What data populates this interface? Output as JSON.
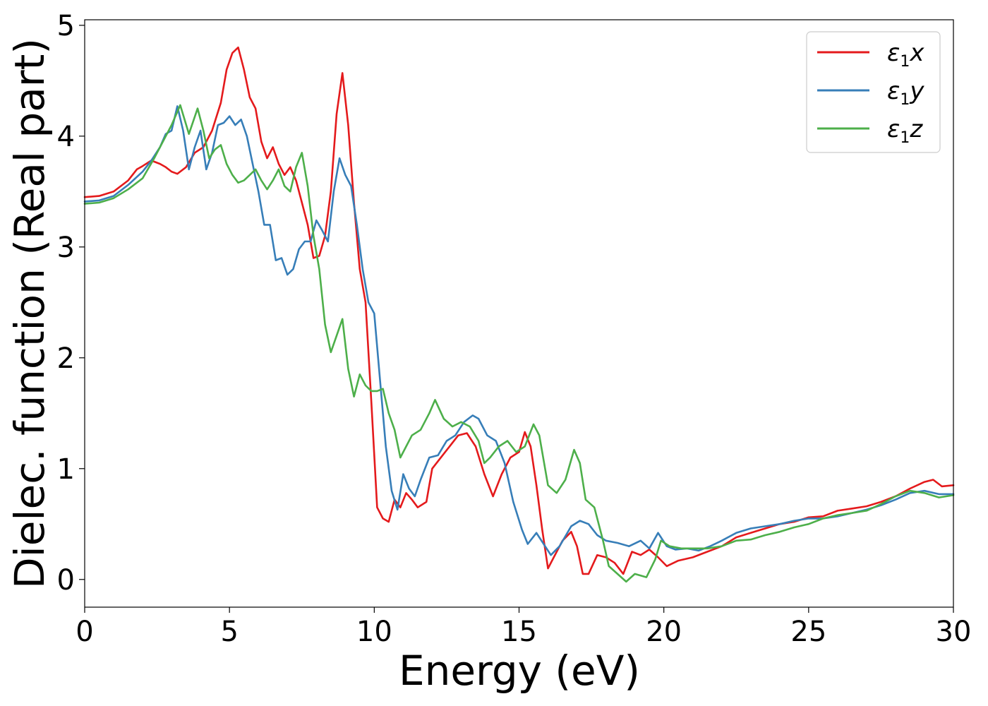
{
  "chart_data": {
    "type": "line",
    "title": "",
    "xlabel": "Energy (eV)",
    "ylabel": "Dielec. function (Real part)",
    "xlim": [
      0,
      30
    ],
    "ylim": [
      -0.25,
      5.05
    ],
    "xticks": [
      "0",
      "5",
      "10",
      "15",
      "20",
      "25",
      "30"
    ],
    "yticks": [
      "0",
      "1",
      "2",
      "3",
      "4",
      "5"
    ],
    "grid": false,
    "legend": "top-right",
    "series": [
      {
        "name": "ε₁x",
        "label_main": "ε",
        "label_sub": "1",
        "label_var": "x",
        "color": "#e41a1c",
        "points": [
          [
            0,
            3.45
          ],
          [
            0.5,
            3.46
          ],
          [
            1,
            3.5
          ],
          [
            1.5,
            3.6
          ],
          [
            1.8,
            3.7
          ],
          [
            2,
            3.73
          ],
          [
            2.3,
            3.78
          ],
          [
            2.6,
            3.75
          ],
          [
            2.8,
            3.72
          ],
          [
            3,
            3.68
          ],
          [
            3.2,
            3.66
          ],
          [
            3.5,
            3.72
          ],
          [
            3.8,
            3.85
          ],
          [
            4.1,
            3.9
          ],
          [
            4.4,
            4.05
          ],
          [
            4.7,
            4.3
          ],
          [
            4.9,
            4.6
          ],
          [
            5.1,
            4.75
          ],
          [
            5.3,
            4.8
          ],
          [
            5.5,
            4.6
          ],
          [
            5.7,
            4.35
          ],
          [
            5.9,
            4.25
          ],
          [
            6.1,
            3.95
          ],
          [
            6.3,
            3.8
          ],
          [
            6.5,
            3.9
          ],
          [
            6.7,
            3.75
          ],
          [
            6.9,
            3.65
          ],
          [
            7.1,
            3.72
          ],
          [
            7.3,
            3.6
          ],
          [
            7.5,
            3.4
          ],
          [
            7.7,
            3.2
          ],
          [
            7.9,
            2.9
          ],
          [
            8.1,
            2.92
          ],
          [
            8.3,
            3.1
          ],
          [
            8.5,
            3.5
          ],
          [
            8.7,
            4.2
          ],
          [
            8.9,
            4.57
          ],
          [
            9.1,
            4.1
          ],
          [
            9.3,
            3.4
          ],
          [
            9.5,
            2.8
          ],
          [
            9.7,
            2.5
          ],
          [
            9.9,
            1.6
          ],
          [
            10.1,
            0.65
          ],
          [
            10.3,
            0.55
          ],
          [
            10.5,
            0.52
          ],
          [
            10.7,
            0.72
          ],
          [
            10.9,
            0.65
          ],
          [
            11.1,
            0.78
          ],
          [
            11.3,
            0.72
          ],
          [
            11.5,
            0.65
          ],
          [
            11.8,
            0.7
          ],
          [
            12,
            1.0
          ],
          [
            12.3,
            1.1
          ],
          [
            12.6,
            1.2
          ],
          [
            12.9,
            1.3
          ],
          [
            13.2,
            1.32
          ],
          [
            13.5,
            1.2
          ],
          [
            13.8,
            0.95
          ],
          [
            14.1,
            0.75
          ],
          [
            14.4,
            0.95
          ],
          [
            14.7,
            1.1
          ],
          [
            15,
            1.15
          ],
          [
            15.2,
            1.33
          ],
          [
            15.4,
            1.2
          ],
          [
            15.6,
            0.85
          ],
          [
            15.8,
            0.45
          ],
          [
            16,
            0.1
          ],
          [
            16.2,
            0.2
          ],
          [
            16.5,
            0.35
          ],
          [
            16.8,
            0.43
          ],
          [
            17,
            0.3
          ],
          [
            17.2,
            0.05
          ],
          [
            17.4,
            0.05
          ],
          [
            17.7,
            0.22
          ],
          [
            18,
            0.2
          ],
          [
            18.3,
            0.15
          ],
          [
            18.6,
            0.05
          ],
          [
            18.9,
            0.25
          ],
          [
            19.2,
            0.22
          ],
          [
            19.5,
            0.27
          ],
          [
            19.8,
            0.2
          ],
          [
            20.1,
            0.12
          ],
          [
            20.5,
            0.17
          ],
          [
            21,
            0.2
          ],
          [
            21.5,
            0.25
          ],
          [
            22,
            0.3
          ],
          [
            22.5,
            0.38
          ],
          [
            23,
            0.42
          ],
          [
            23.5,
            0.46
          ],
          [
            24,
            0.5
          ],
          [
            24.5,
            0.52
          ],
          [
            25,
            0.56
          ],
          [
            25.5,
            0.57
          ],
          [
            26,
            0.62
          ],
          [
            26.5,
            0.64
          ],
          [
            27,
            0.66
          ],
          [
            27.5,
            0.7
          ],
          [
            28,
            0.75
          ],
          [
            28.5,
            0.82
          ],
          [
            29,
            0.88
          ],
          [
            29.3,
            0.9
          ],
          [
            29.6,
            0.84
          ],
          [
            30,
            0.85
          ]
        ]
      },
      {
        "name": "ε₁y",
        "label_main": "ε",
        "label_sub": "1",
        "label_var": "y",
        "color": "#377eb8",
        "points": [
          [
            0,
            3.41
          ],
          [
            0.5,
            3.42
          ],
          [
            1,
            3.46
          ],
          [
            1.5,
            3.56
          ],
          [
            2,
            3.68
          ],
          [
            2.3,
            3.78
          ],
          [
            2.6,
            3.9
          ],
          [
            2.8,
            4.02
          ],
          [
            3,
            4.05
          ],
          [
            3.2,
            4.27
          ],
          [
            3.4,
            4.05
          ],
          [
            3.6,
            3.7
          ],
          [
            3.8,
            3.9
          ],
          [
            4,
            4.05
          ],
          [
            4.2,
            3.7
          ],
          [
            4.4,
            3.85
          ],
          [
            4.6,
            4.1
          ],
          [
            4.8,
            4.12
          ],
          [
            5,
            4.18
          ],
          [
            5.2,
            4.1
          ],
          [
            5.4,
            4.15
          ],
          [
            5.6,
            4.0
          ],
          [
            5.8,
            3.75
          ],
          [
            6,
            3.5
          ],
          [
            6.2,
            3.2
          ],
          [
            6.4,
            3.2
          ],
          [
            6.6,
            2.88
          ],
          [
            6.8,
            2.9
          ],
          [
            7,
            2.75
          ],
          [
            7.2,
            2.8
          ],
          [
            7.4,
            2.98
          ],
          [
            7.6,
            3.05
          ],
          [
            7.8,
            3.05
          ],
          [
            8,
            3.24
          ],
          [
            8.2,
            3.15
          ],
          [
            8.4,
            3.05
          ],
          [
            8.6,
            3.5
          ],
          [
            8.8,
            3.8
          ],
          [
            9,
            3.65
          ],
          [
            9.2,
            3.55
          ],
          [
            9.4,
            3.2
          ],
          [
            9.6,
            2.8
          ],
          [
            9.8,
            2.5
          ],
          [
            10,
            2.4
          ],
          [
            10.2,
            1.8
          ],
          [
            10.4,
            1.2
          ],
          [
            10.6,
            0.8
          ],
          [
            10.8,
            0.63
          ],
          [
            11,
            0.95
          ],
          [
            11.2,
            0.82
          ],
          [
            11.4,
            0.75
          ],
          [
            11.6,
            0.9
          ],
          [
            11.9,
            1.1
          ],
          [
            12.2,
            1.12
          ],
          [
            12.5,
            1.25
          ],
          [
            12.8,
            1.3
          ],
          [
            13.1,
            1.42
          ],
          [
            13.4,
            1.48
          ],
          [
            13.6,
            1.45
          ],
          [
            13.9,
            1.3
          ],
          [
            14.2,
            1.25
          ],
          [
            14.5,
            1.05
          ],
          [
            14.8,
            0.7
          ],
          [
            15.1,
            0.45
          ],
          [
            15.3,
            0.32
          ],
          [
            15.6,
            0.42
          ],
          [
            15.9,
            0.3
          ],
          [
            16.1,
            0.22
          ],
          [
            16.4,
            0.3
          ],
          [
            16.8,
            0.48
          ],
          [
            17.1,
            0.53
          ],
          [
            17.4,
            0.5
          ],
          [
            17.7,
            0.4
          ],
          [
            18,
            0.35
          ],
          [
            18.4,
            0.33
          ],
          [
            18.8,
            0.3
          ],
          [
            19.2,
            0.35
          ],
          [
            19.5,
            0.28
          ],
          [
            19.8,
            0.42
          ],
          [
            20.1,
            0.3
          ],
          [
            20.4,
            0.27
          ],
          [
            20.8,
            0.28
          ],
          [
            21.2,
            0.26
          ],
          [
            21.6,
            0.3
          ],
          [
            22,
            0.35
          ],
          [
            22.5,
            0.42
          ],
          [
            23,
            0.46
          ],
          [
            23.5,
            0.48
          ],
          [
            24,
            0.5
          ],
          [
            24.5,
            0.53
          ],
          [
            25,
            0.55
          ],
          [
            25.5,
            0.55
          ],
          [
            26,
            0.57
          ],
          [
            26.5,
            0.6
          ],
          [
            27,
            0.63
          ],
          [
            27.5,
            0.67
          ],
          [
            28,
            0.72
          ],
          [
            28.5,
            0.78
          ],
          [
            29,
            0.8
          ],
          [
            29.5,
            0.77
          ],
          [
            30,
            0.77
          ]
        ]
      },
      {
        "name": "ε₁z",
        "label_main": "ε",
        "label_sub": "1",
        "label_var": "z",
        "color": "#4daf4a",
        "points": [
          [
            0,
            3.39
          ],
          [
            0.5,
            3.4
          ],
          [
            1,
            3.44
          ],
          [
            1.5,
            3.52
          ],
          [
            2,
            3.62
          ],
          [
            2.4,
            3.8
          ],
          [
            2.7,
            3.95
          ],
          [
            3,
            4.1
          ],
          [
            3.3,
            4.28
          ],
          [
            3.6,
            4.02
          ],
          [
            3.9,
            4.25
          ],
          [
            4.1,
            4.05
          ],
          [
            4.3,
            3.8
          ],
          [
            4.5,
            3.88
          ],
          [
            4.7,
            3.92
          ],
          [
            4.9,
            3.75
          ],
          [
            5.1,
            3.65
          ],
          [
            5.3,
            3.58
          ],
          [
            5.5,
            3.6
          ],
          [
            5.7,
            3.65
          ],
          [
            5.9,
            3.7
          ],
          [
            6.1,
            3.6
          ],
          [
            6.3,
            3.52
          ],
          [
            6.5,
            3.6
          ],
          [
            6.7,
            3.7
          ],
          [
            6.9,
            3.55
          ],
          [
            7.1,
            3.5
          ],
          [
            7.3,
            3.72
          ],
          [
            7.5,
            3.85
          ],
          [
            7.7,
            3.55
          ],
          [
            7.9,
            3.1
          ],
          [
            8.1,
            2.8
          ],
          [
            8.3,
            2.3
          ],
          [
            8.5,
            2.05
          ],
          [
            8.7,
            2.2
          ],
          [
            8.9,
            2.35
          ],
          [
            9.1,
            1.9
          ],
          [
            9.3,
            1.65
          ],
          [
            9.5,
            1.85
          ],
          [
            9.7,
            1.75
          ],
          [
            9.9,
            1.7
          ],
          [
            10.1,
            1.7
          ],
          [
            10.3,
            1.72
          ],
          [
            10.5,
            1.5
          ],
          [
            10.7,
            1.35
          ],
          [
            10.9,
            1.1
          ],
          [
            11.1,
            1.2
          ],
          [
            11.3,
            1.3
          ],
          [
            11.6,
            1.35
          ],
          [
            11.9,
            1.5
          ],
          [
            12.1,
            1.62
          ],
          [
            12.4,
            1.45
          ],
          [
            12.7,
            1.38
          ],
          [
            13,
            1.42
          ],
          [
            13.3,
            1.38
          ],
          [
            13.6,
            1.25
          ],
          [
            13.8,
            1.05
          ],
          [
            14,
            1.1
          ],
          [
            14.3,
            1.2
          ],
          [
            14.6,
            1.25
          ],
          [
            14.9,
            1.15
          ],
          [
            15.2,
            1.2
          ],
          [
            15.5,
            1.4
          ],
          [
            15.7,
            1.3
          ],
          [
            16,
            0.85
          ],
          [
            16.3,
            0.78
          ],
          [
            16.6,
            0.9
          ],
          [
            16.9,
            1.17
          ],
          [
            17.1,
            1.05
          ],
          [
            17.3,
            0.72
          ],
          [
            17.6,
            0.65
          ],
          [
            17.9,
            0.35
          ],
          [
            18.1,
            0.12
          ],
          [
            18.4,
            0.05
          ],
          [
            18.7,
            -0.02
          ],
          [
            19,
            0.05
          ],
          [
            19.4,
            0.02
          ],
          [
            19.7,
            0.18
          ],
          [
            19.9,
            0.35
          ],
          [
            20.2,
            0.3
          ],
          [
            20.6,
            0.28
          ],
          [
            21,
            0.28
          ],
          [
            21.5,
            0.28
          ],
          [
            22,
            0.3
          ],
          [
            22.5,
            0.35
          ],
          [
            23,
            0.36
          ],
          [
            23.5,
            0.4
          ],
          [
            24,
            0.43
          ],
          [
            24.5,
            0.47
          ],
          [
            25,
            0.5
          ],
          [
            25.5,
            0.55
          ],
          [
            26,
            0.58
          ],
          [
            26.5,
            0.6
          ],
          [
            27,
            0.62
          ],
          [
            27.5,
            0.68
          ],
          [
            28,
            0.75
          ],
          [
            28.5,
            0.8
          ],
          [
            29,
            0.78
          ],
          [
            29.5,
            0.74
          ],
          [
            30,
            0.76
          ]
        ]
      }
    ]
  }
}
